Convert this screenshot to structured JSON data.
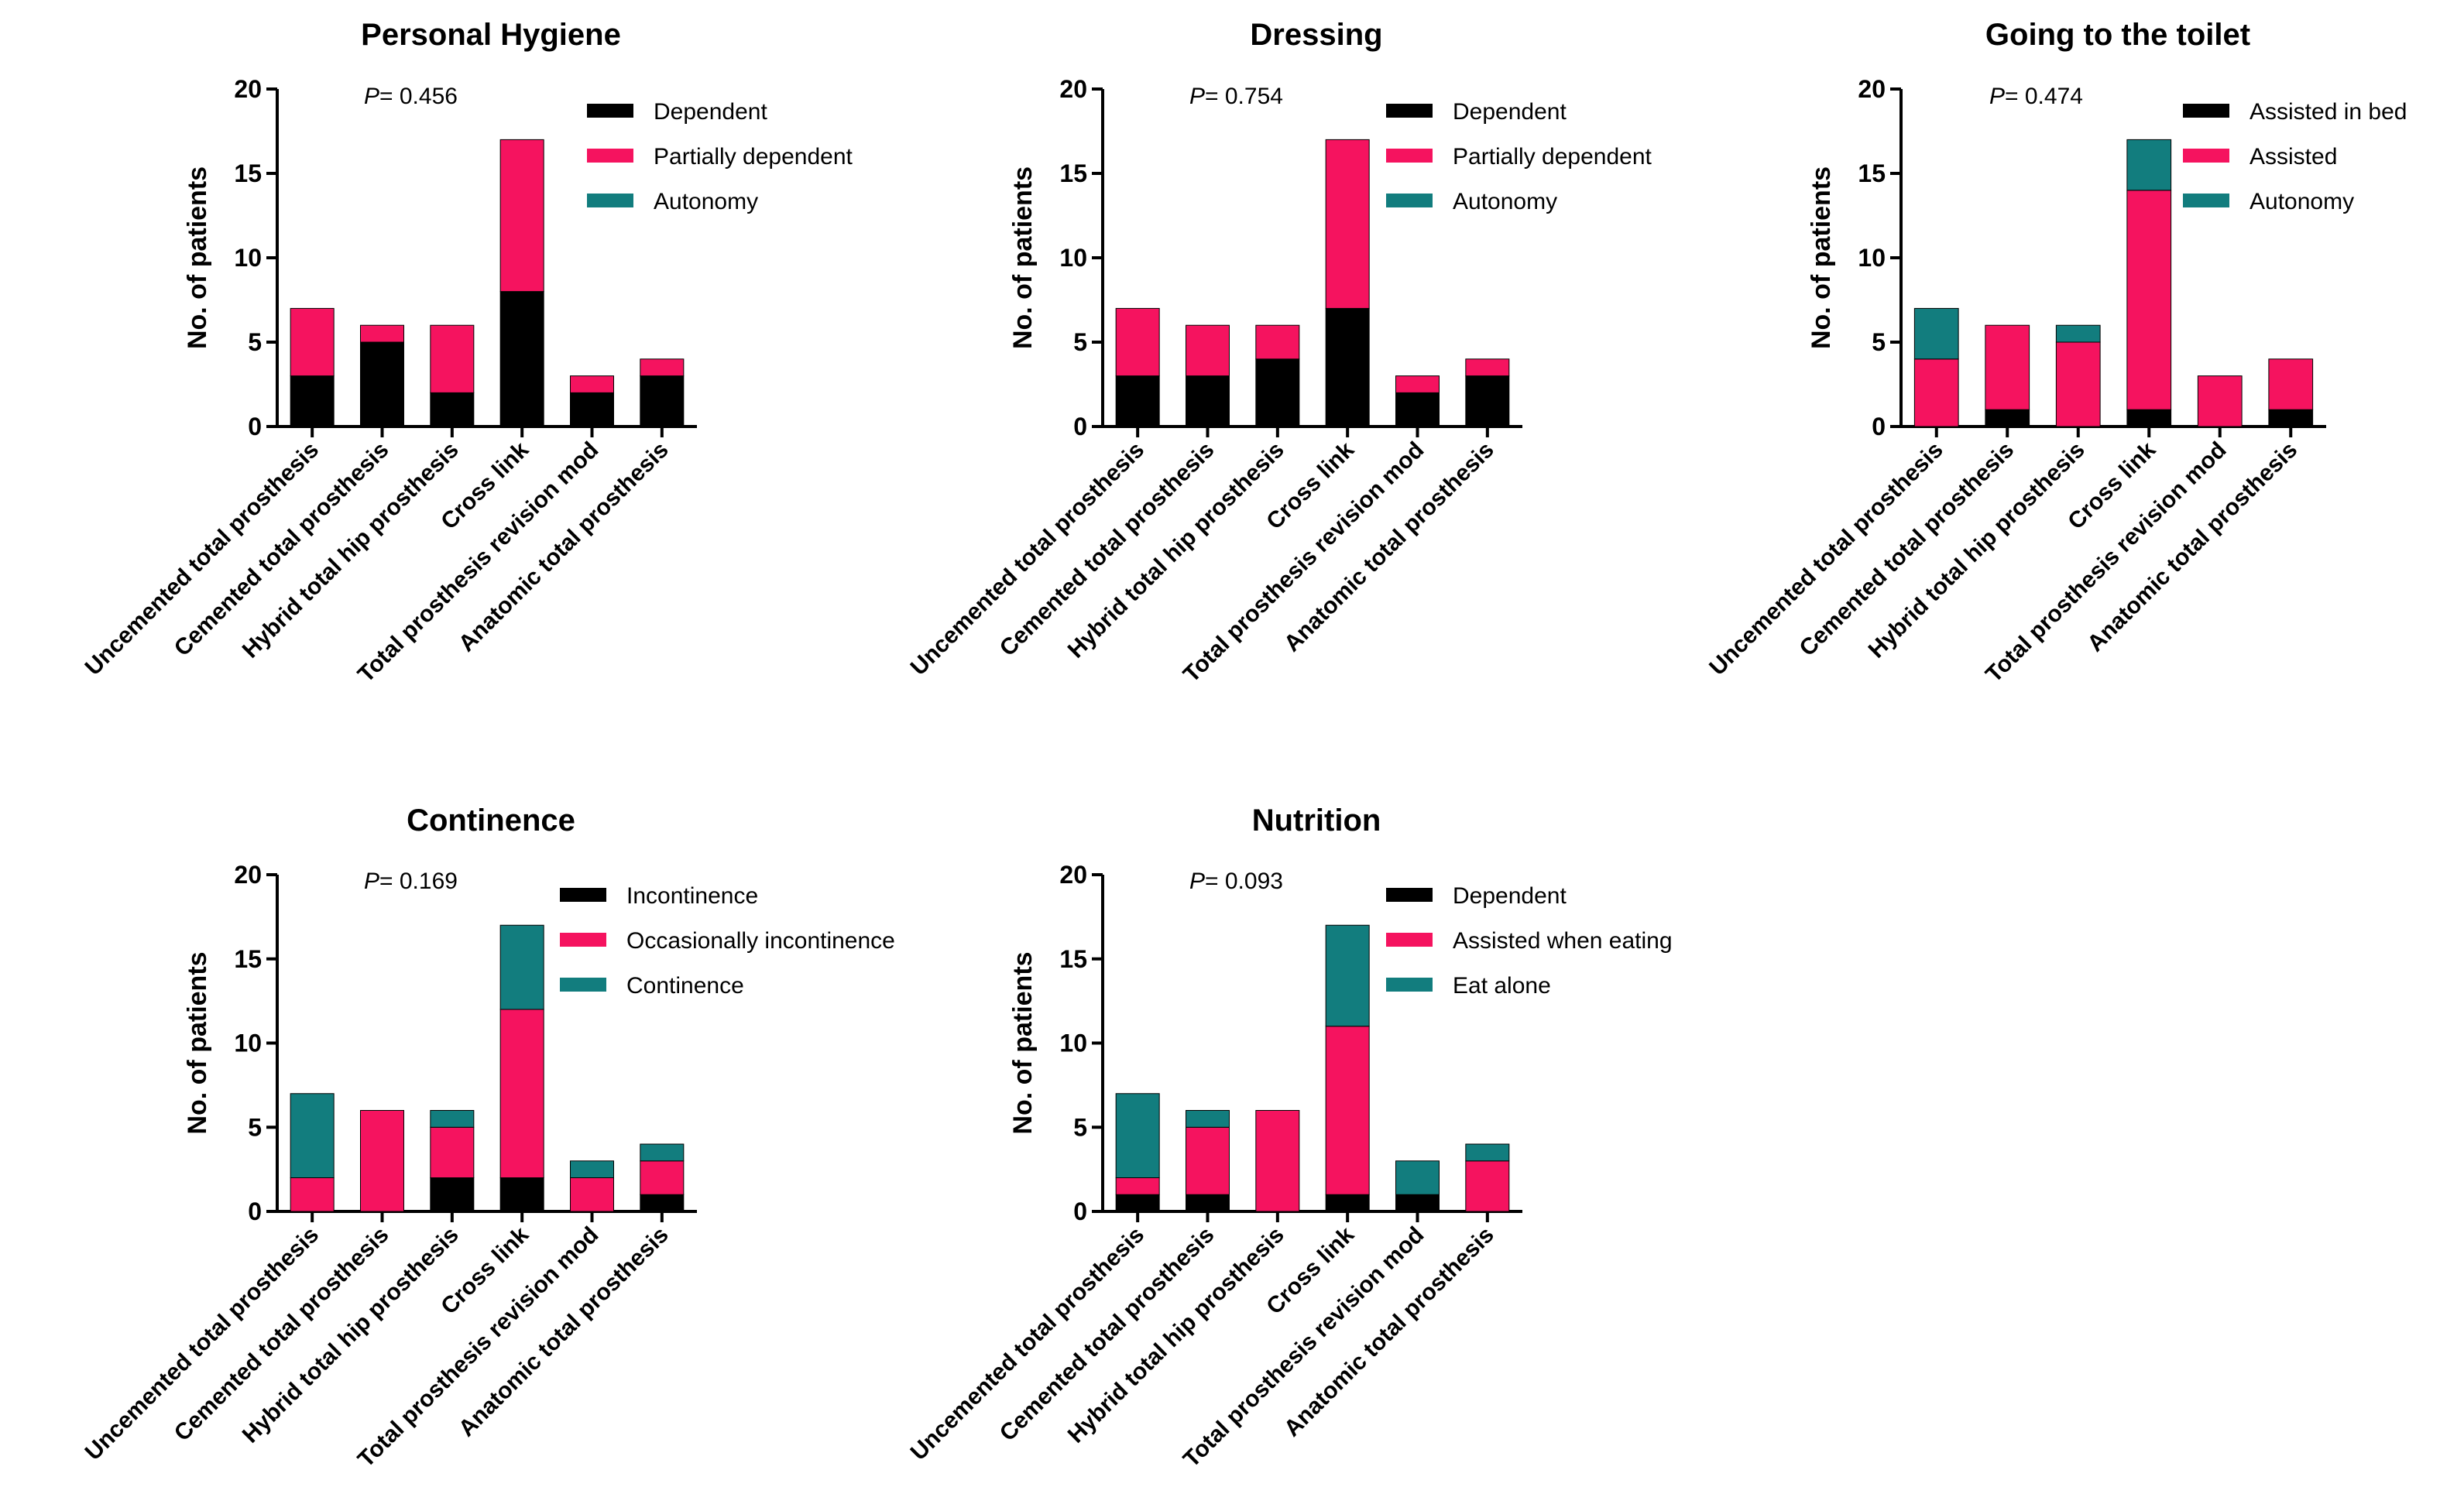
{
  "figure": {
    "colors": {
      "black": "#000000",
      "magenta": "#f5135f",
      "teal": "#127d7e"
    },
    "common_y_label": "No. of patients"
  },
  "chart_data": [
    {
      "id": "personal-hygiene",
      "type": "bar",
      "stacked": true,
      "title": "Personal Hygiene",
      "p_value_label": "P",
      "p_value_text": "= 0.456",
      "ylabel": "No. of patients",
      "ylim": [
        0,
        20
      ],
      "yticks": [
        0,
        5,
        10,
        15,
        20
      ],
      "categories": [
        "Uncemented total prosthesis",
        "Cemented total prosthesis",
        "Hybrid total hip prosthesis",
        "Cross link",
        "Total prosthesis revision mod",
        "Anatomic total prosthesis"
      ],
      "series": [
        {
          "name": "Dependent",
          "color": "#000000",
          "values": [
            3,
            5,
            2,
            8,
            2,
            3
          ]
        },
        {
          "name": "Partially dependent",
          "color": "#f5135f",
          "values": [
            4,
            1,
            4,
            9,
            1,
            1
          ]
        },
        {
          "name": "Autonomy",
          "color": "#127d7e",
          "values": [
            0,
            0,
            0,
            0,
            0,
            0
          ]
        }
      ]
    },
    {
      "id": "dressing",
      "type": "bar",
      "stacked": true,
      "title": "Dressing",
      "p_value_label": "P",
      "p_value_text": "= 0.754",
      "ylabel": "No. of patients",
      "ylim": [
        0,
        20
      ],
      "yticks": [
        0,
        5,
        10,
        15,
        20
      ],
      "categories": [
        "Uncemented total prosthesis",
        "Cemented total prosthesis",
        "Hybrid total hip prosthesis",
        "Cross link",
        "Total prosthesis revision mod",
        "Anatomic total prosthesis"
      ],
      "series": [
        {
          "name": "Dependent",
          "color": "#000000",
          "values": [
            3,
            3,
            4,
            7,
            2,
            3
          ]
        },
        {
          "name": "Partially dependent",
          "color": "#f5135f",
          "values": [
            4,
            3,
            2,
            10,
            1,
            1
          ]
        },
        {
          "name": "Autonomy",
          "color": "#127d7e",
          "values": [
            0,
            0,
            0,
            0,
            0,
            0
          ]
        }
      ]
    },
    {
      "id": "going-to-the-toilet",
      "type": "bar",
      "stacked": true,
      "title": "Going to the toilet",
      "p_value_label": "P",
      "p_value_text": "= 0.474",
      "ylabel": "No. of patients",
      "ylim": [
        0,
        20
      ],
      "yticks": [
        0,
        5,
        10,
        15,
        20
      ],
      "categories": [
        "Uncemented total prosthesis",
        "Cemented total prosthesis",
        "Hybrid total hip prosthesis",
        "Cross link",
        "Total prosthesis revision mod",
        "Anatomic total prosthesis"
      ],
      "series": [
        {
          "name": "Assisted in bed",
          "color": "#000000",
          "values": [
            0,
            1,
            0,
            1,
            0,
            1
          ]
        },
        {
          "name": "Assisted",
          "color": "#f5135f",
          "values": [
            4,
            5,
            5,
            13,
            3,
            3
          ]
        },
        {
          "name": "Autonomy",
          "color": "#127d7e",
          "values": [
            3,
            0,
            1,
            3,
            0,
            0
          ]
        }
      ]
    },
    {
      "id": "continence",
      "type": "bar",
      "stacked": true,
      "title": "Continence",
      "p_value_label": "P",
      "p_value_text": "= 0.169",
      "ylabel": "No. of patients",
      "ylim": [
        0,
        20
      ],
      "yticks": [
        0,
        5,
        10,
        15,
        20
      ],
      "categories": [
        "Uncemented total prosthesis",
        "Cemented total prosthesis",
        "Hybrid total hip prosthesis",
        "Cross link",
        "Total prosthesis revision mod",
        "Anatomic total prosthesis"
      ],
      "series": [
        {
          "name": "Incontinence",
          "color": "#000000",
          "values": [
            0,
            0,
            2,
            2,
            0,
            1
          ]
        },
        {
          "name": "Occasionally incontinence",
          "color": "#f5135f",
          "values": [
            2,
            6,
            3,
            10,
            2,
            2
          ]
        },
        {
          "name": "Continence",
          "color": "#127d7e",
          "values": [
            5,
            0,
            1,
            5,
            1,
            1
          ]
        }
      ]
    },
    {
      "id": "nutrition",
      "type": "bar",
      "stacked": true,
      "title": "Nutrition",
      "p_value_label": "P",
      "p_value_text": "= 0.093",
      "ylabel": "No. of patients",
      "ylim": [
        0,
        20
      ],
      "yticks": [
        0,
        5,
        10,
        15,
        20
      ],
      "categories": [
        "Uncemented total prosthesis",
        "Cemented total prosthesis",
        "Hybrid total hip prosthesis",
        "Cross link",
        "Total prosthesis revision mod",
        "Anatomic total prosthesis"
      ],
      "series": [
        {
          "name": "Dependent",
          "color": "#000000",
          "values": [
            1,
            1,
            0,
            1,
            1,
            0
          ]
        },
        {
          "name": "Assisted when eating",
          "color": "#f5135f",
          "values": [
            1,
            4,
            6,
            10,
            0,
            3
          ]
        },
        {
          "name": "Eat alone",
          "color": "#127d7e",
          "values": [
            5,
            1,
            0,
            6,
            2,
            1
          ]
        }
      ]
    }
  ]
}
